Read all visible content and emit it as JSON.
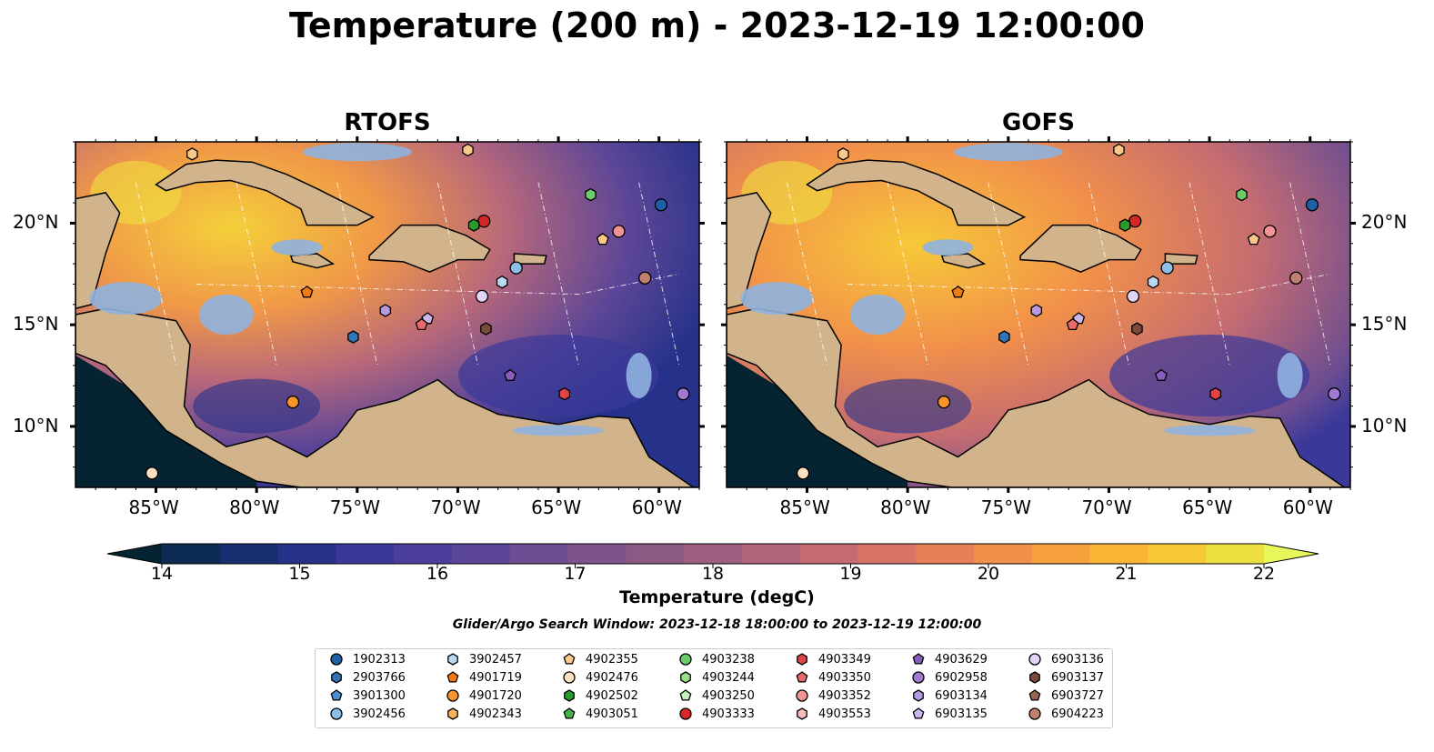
{
  "title": "Temperature (200 m) - 2023-12-19 12:00:00",
  "panels": [
    {
      "title": "RTOFS"
    },
    {
      "title": "GOFS"
    }
  ],
  "axes": {
    "lon_ticks": [
      "85°W",
      "80°W",
      "75°W",
      "70°W",
      "65°W",
      "60°W"
    ],
    "lat_ticks": [
      "20°N",
      "15°N",
      "10°N"
    ]
  },
  "colorbar": {
    "label": "Temperature (degC)",
    "ticks": [
      "14",
      "15",
      "16",
      "17",
      "18",
      "19",
      "20",
      "21",
      "22"
    ],
    "range": [
      14,
      22
    ],
    "colormap": "thermal",
    "colors": [
      "#062331",
      "#0d2b52",
      "#172f6e",
      "#26328a",
      "#3a399a",
      "#4b3f9b",
      "#5c4697",
      "#6c4d91",
      "#7c538b",
      "#8c5985",
      "#9e5e80",
      "#b1657a",
      "#c56c72",
      "#d87465",
      "#e67f57",
      "#f1904a",
      "#f8a23d",
      "#fbb536",
      "#f7c938",
      "#eedf40",
      "#e7f75b"
    ]
  },
  "search_window": "Glider/Argo Search Window: 2023-12-18 18:00:00 to 2023-12-19 12:00:00",
  "legend": [
    {
      "id": "1902313",
      "marker": "circle",
      "color": "#1f5fa8"
    },
    {
      "id": "2903766",
      "marker": "hexagon",
      "color": "#3474b6"
    },
    {
      "id": "3901300",
      "marker": "pentagon",
      "color": "#4a90d0"
    },
    {
      "id": "3902456",
      "marker": "circle",
      "color": "#8cbfe8"
    },
    {
      "id": "3902457",
      "marker": "hexagon",
      "color": "#bcd8f0"
    },
    {
      "id": "4901719",
      "marker": "pentagon",
      "color": "#f27a10"
    },
    {
      "id": "4901720",
      "marker": "circle",
      "color": "#f8962c"
    },
    {
      "id": "4902343",
      "marker": "hexagon",
      "color": "#fab35a"
    },
    {
      "id": "4902355",
      "marker": "pentagon",
      "color": "#fbc88a"
    },
    {
      "id": "4902476",
      "marker": "circle",
      "color": "#fde0c0"
    },
    {
      "id": "4902502",
      "marker": "hexagon",
      "color": "#2a9a2a"
    },
    {
      "id": "4903051",
      "marker": "pentagon",
      "color": "#44b244"
    },
    {
      "id": "4903238",
      "marker": "circle",
      "color": "#6ccc6c"
    },
    {
      "id": "4903244",
      "marker": "hexagon",
      "color": "#98df8a"
    },
    {
      "id": "4903250",
      "marker": "pentagon",
      "color": "#c6f0c0"
    },
    {
      "id": "4903333",
      "marker": "circle",
      "color": "#d62728"
    },
    {
      "id": "4903349",
      "marker": "hexagon",
      "color": "#e04444"
    },
    {
      "id": "4903350",
      "marker": "pentagon",
      "color": "#ea6a6a"
    },
    {
      "id": "4903352",
      "marker": "circle",
      "color": "#f29494"
    },
    {
      "id": "4903553",
      "marker": "hexagon",
      "color": "#f8bcbc"
    },
    {
      "id": "4903629",
      "marker": "pentagon",
      "color": "#8a5cc0"
    },
    {
      "id": "6902958",
      "marker": "circle",
      "color": "#a07ad0"
    },
    {
      "id": "6903134",
      "marker": "hexagon",
      "color": "#b89ae0"
    },
    {
      "id": "6903135",
      "marker": "pentagon",
      "color": "#ccb6ec"
    },
    {
      "id": "6903136",
      "marker": "circle",
      "color": "#e2d4f6"
    },
    {
      "id": "6903137",
      "marker": "hexagon",
      "color": "#7a4a3a"
    },
    {
      "id": "6903727",
      "marker": "pentagon",
      "color": "#9a6454"
    },
    {
      "id": "6904223",
      "marker": "circle",
      "color": "#c08070"
    }
  ],
  "map_colors": {
    "land": "#d1b48c",
    "shelf": "#8fb2df",
    "coast": "#000000"
  }
}
